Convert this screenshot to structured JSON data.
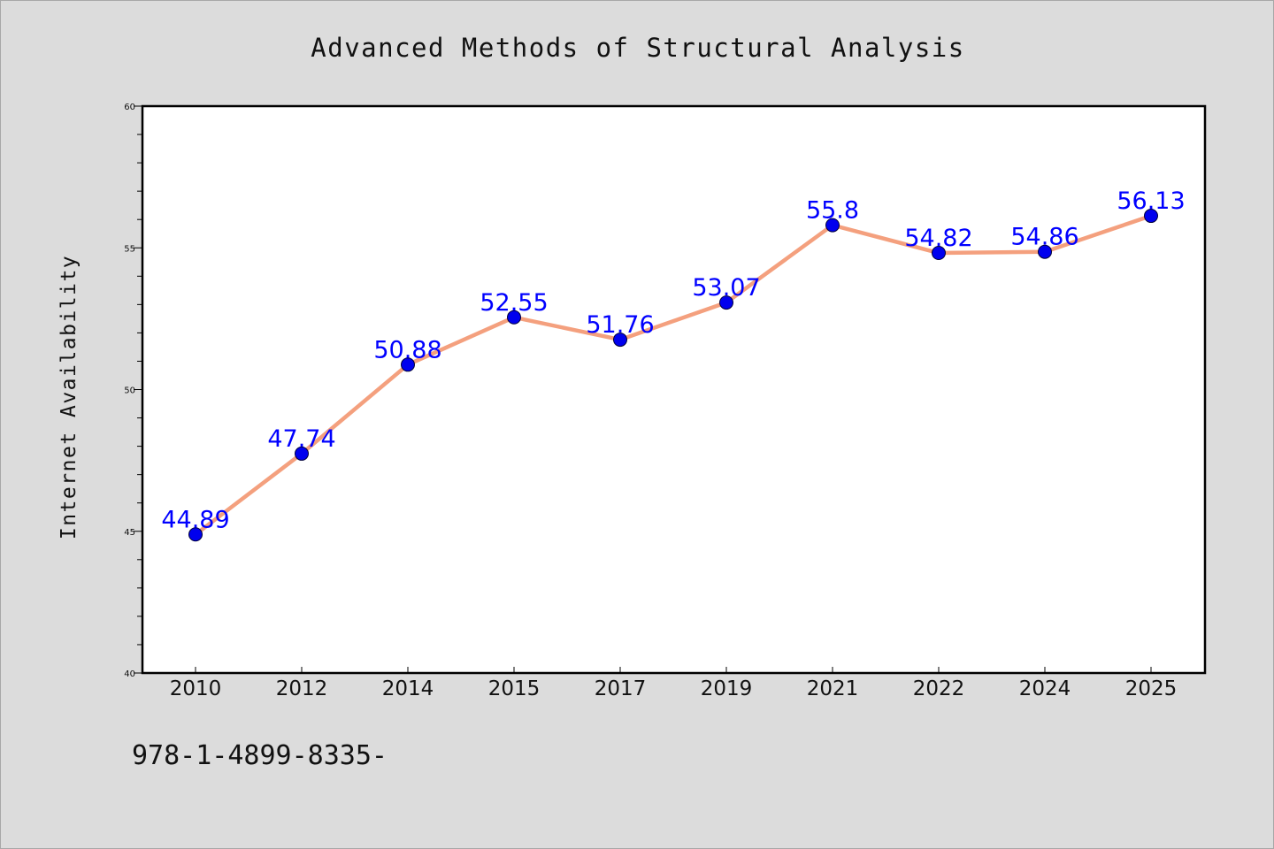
{
  "chart_data": {
    "type": "line",
    "title": "Advanced Methods of Structural Analysis",
    "xlabel": "",
    "ylabel": "Internet Availability",
    "categories": [
      "2010",
      "2012",
      "2014",
      "2015",
      "2017",
      "2019",
      "2021",
      "2022",
      "2024",
      "2025"
    ],
    "series": [
      {
        "values": [
          44.89,
          47.74,
          50.88,
          52.55,
          51.76,
          53.07,
          55.8,
          54.82,
          54.86,
          56.13
        ],
        "labels": [
          "44.89",
          "47.74",
          "50.88",
          "52.55",
          "51.76",
          "53.07",
          "55.8",
          "54.82",
          "54.86",
          "56.13"
        ],
        "line_color": "#f4a07e",
        "marker_color": "#0000ee",
        "label_color": "#0000ff"
      }
    ],
    "ylim": [
      40,
      60
    ],
    "yticks": [
      "40",
      "45",
      "50",
      "55",
      "60"
    ],
    "grid": false,
    "legend": "none",
    "plot_background": "#ffffff",
    "page_background": "#dcdcdc"
  },
  "footer": {
    "text": "978-1-4899-8335-"
  }
}
